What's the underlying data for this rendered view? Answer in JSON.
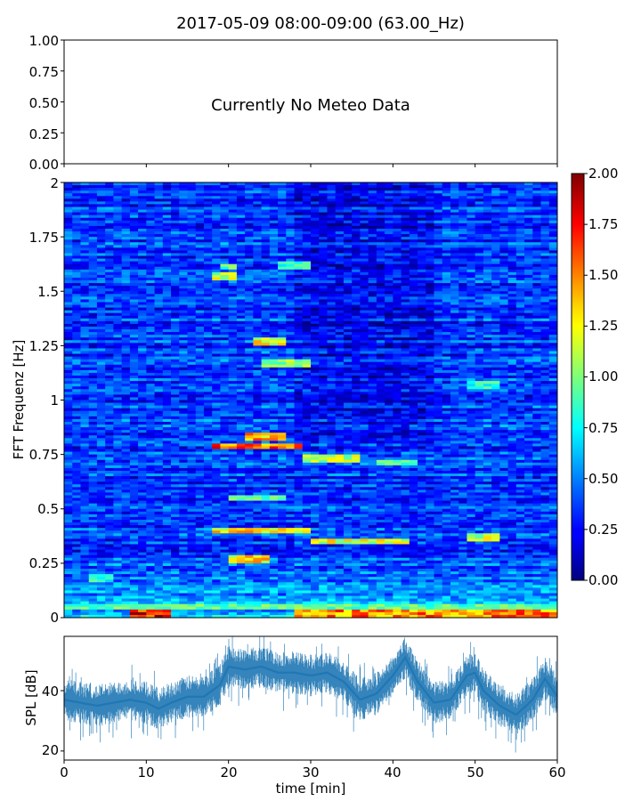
{
  "figure": {
    "title": "2017-05-09 08:00-09:00 (63.00_Hz)"
  },
  "chart_data": [
    {
      "type": "line",
      "panel": "meteo",
      "message": "Currently No Meteo Data",
      "ylim": [
        0,
        1
      ],
      "yticks": [
        "1.00",
        "0.75",
        "0.50",
        "0.25",
        "0.00"
      ],
      "xlim": [
        0,
        60
      ],
      "xticks_labeled": false
    },
    {
      "type": "heatmap",
      "panel": "spectrogram",
      "ylabel": "FFT Frequenz [Hz]",
      "xlim": [
        0,
        60
      ],
      "ylim": [
        0,
        2
      ],
      "yticks": [
        "0",
        "0.25",
        "0.5",
        "0.75",
        "1",
        "1.25",
        "1.5",
        "1.75",
        "2"
      ],
      "colormap": "jet",
      "colorbar": {
        "range": [
          0,
          2
        ],
        "ticks": [
          "0.00",
          "0.25",
          "0.50",
          "0.75",
          "1.00",
          "1.25",
          "1.50",
          "1.75",
          "2.00"
        ]
      },
      "features": [
        {
          "t0": 18,
          "t1": 21,
          "f": 1.57,
          "v": 1.2
        },
        {
          "t0": 19,
          "t1": 21,
          "f": 1.61,
          "v": 1.0
        },
        {
          "t0": 26.5,
          "t1": 29.5,
          "f": 1.62,
          "v": 0.9
        },
        {
          "t0": 23,
          "t1": 26.5,
          "f": 1.27,
          "v": 1.3
        },
        {
          "t0": 24,
          "t1": 30,
          "f": 1.17,
          "v": 1.1
        },
        {
          "t0": 49,
          "t1": 53,
          "f": 1.07,
          "v": 0.9
        },
        {
          "t0": 18,
          "t1": 29,
          "f": 0.79,
          "v": 1.7
        },
        {
          "t0": 22,
          "t1": 27,
          "f": 0.83,
          "v": 1.5
        },
        {
          "t0": 29,
          "t1": 36,
          "f": 0.73,
          "v": 1.2
        },
        {
          "t0": 38,
          "t1": 43,
          "f": 0.71,
          "v": 1.0
        },
        {
          "t0": 18,
          "t1": 30,
          "f": 0.4,
          "v": 1.4
        },
        {
          "t0": 30,
          "t1": 42,
          "f": 0.35,
          "v": 1.3
        },
        {
          "t0": 49,
          "t1": 53,
          "f": 0.37,
          "v": 1.2
        },
        {
          "t0": 20,
          "t1": 25,
          "f": 0.27,
          "v": 1.4
        },
        {
          "t0": 20,
          "t1": 27,
          "f": 0.55,
          "v": 1.0
        },
        {
          "t0": 3,
          "t1": 6,
          "f": 0.18,
          "v": 0.9
        },
        {
          "t0": 8,
          "t1": 13,
          "f": 0.02,
          "v": 1.9
        },
        {
          "t0": 28,
          "t1": 60,
          "f": 0.02,
          "v": 1.6
        },
        {
          "t0": 0,
          "t1": 60,
          "f": 0.05,
          "v": 1.0
        }
      ]
    },
    {
      "type": "line",
      "panel": "spl",
      "xlabel": "time [min]",
      "ylabel": "SPL [dB]",
      "xlim": [
        0,
        60
      ],
      "ylim": [
        17,
        58
      ],
      "xticks": [
        "0",
        "10",
        "20",
        "30",
        "40",
        "50",
        "60"
      ],
      "yticks": [
        "40",
        "20"
      ],
      "color": "#1f77b4",
      "series": [
        {
          "x": [
            0,
            2,
            4,
            6,
            8,
            10,
            11.5,
            13,
            15,
            17,
            19,
            20,
            22,
            24,
            26,
            28,
            30,
            32,
            34,
            36,
            38,
            40,
            41.5,
            43,
            45,
            47,
            49,
            50,
            51,
            53,
            55,
            57,
            58.5,
            60
          ],
          "y": [
            37,
            36,
            35,
            36,
            37,
            36,
            34,
            36,
            38,
            38,
            42,
            48,
            47,
            48,
            46,
            46,
            45,
            46,
            43,
            37,
            39,
            45,
            51,
            43,
            36,
            37,
            45,
            46,
            40,
            35,
            32,
            37,
            44,
            38
          ]
        }
      ]
    }
  ]
}
